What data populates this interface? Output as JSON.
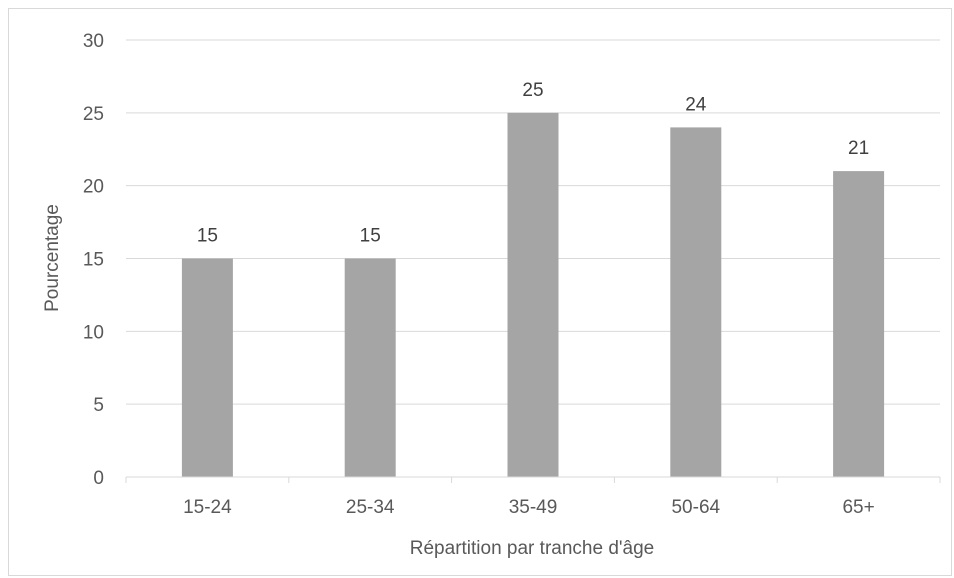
{
  "chart_data": {
    "type": "bar",
    "categories": [
      "15-24",
      "25-34",
      "35-49",
      "50-64",
      "65+"
    ],
    "values": [
      15,
      15,
      25,
      24,
      21
    ],
    "data_labels": [
      "15",
      "15",
      "25",
      "24",
      "21"
    ],
    "title": "",
    "xlabel": "Répartition par tranche d'âge",
    "ylabel": "Pourcentage",
    "ylim": [
      0,
      30
    ],
    "yticks": [
      "0",
      "5",
      "10",
      "15",
      "20",
      "25",
      "30"
    ],
    "grid": true,
    "legend": "none",
    "colors": {
      "bar": "#a5a5a5",
      "grid": "#d9d9d9",
      "text": "#595959"
    }
  }
}
